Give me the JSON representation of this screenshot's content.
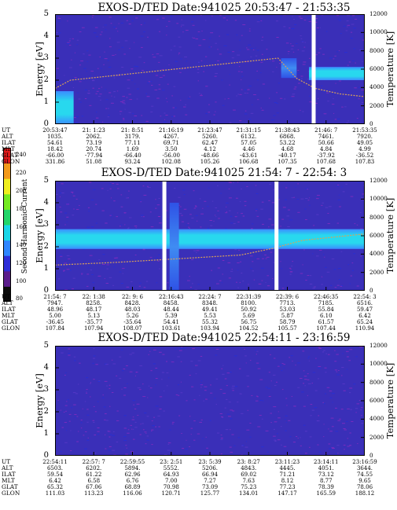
{
  "colorbar": {
    "label": "Second Harmonic Current",
    "ticks": [
      "80",
      "100",
      "120",
      "140",
      "160",
      "180",
      "200",
      "220",
      "240"
    ],
    "colors": [
      "#0b0b0b",
      "#5b1d8c",
      "#2e2ed8",
      "#2f86ff",
      "#19d6e8",
      "#22d66a",
      "#74ea20",
      "#f0ee1e",
      "#f39a1a",
      "#e11b1b"
    ]
  },
  "panels": [
    {
      "title": "EXOS-D/TED   Date:941025   20:53:47 - 21:53:35",
      "ylabel": "Energy [eV]",
      "rlabel": "Temperature [K]",
      "eph_labels": [
        "UT",
        "ALT",
        "ILAT",
        "MLT",
        "GLAT",
        "GLON"
      ],
      "eph": [
        [
          "20:53:47",
          "1035.",
          "54.61",
          "18.42",
          "-66.00",
          "331.86"
        ],
        [
          "21: 1:23",
          "2062.",
          "73.19",
          "20.74",
          "-77.94",
          "51.08"
        ],
        [
          "21: 8:51",
          "3179.",
          "77.11",
          "1.69",
          "-66.40",
          "93.24"
        ],
        [
          "21:16:19",
          "4267.",
          "69.71",
          "3.50",
          "-56.00",
          "102.08"
        ],
        [
          "21:23:47",
          "5260.",
          "62.47",
          "4.12",
          "-48.66",
          "105.26"
        ],
        [
          "21:31:15",
          "6132.",
          "57.05",
          "4.46",
          "-43.61",
          "106.68"
        ],
        [
          "21:38:43",
          "6868.",
          "53.22",
          "4.68",
          "-40.17",
          "107.35"
        ],
        [
          "21:46: 7",
          "7461.",
          "50.66",
          "4.84",
          "-37.92",
          "107.68"
        ],
        [
          "21:53:35",
          "7920.",
          "49.05",
          "4.99",
          "-36.52",
          "107.83"
        ]
      ]
    },
    {
      "title": "EXOS-D/TED   Date:941025   21:54: 7 - 22:54: 3",
      "ylabel": "Energy [eV]",
      "rlabel": "Temperature [K]",
      "eph_labels": [
        "UT",
        "ALT",
        "ILAT",
        "MLT",
        "GLAT",
        "GLON"
      ],
      "eph": [
        [
          "21:54: 7",
          "7947.",
          "48.96",
          "5.00",
          "-36.45",
          "107.84"
        ],
        [
          "22: 1:38",
          "8258.",
          "48.17",
          "5.13",
          "-35.77",
          "107.94"
        ],
        [
          "22: 9: 6",
          "8428.",
          "48.03",
          "5.26",
          "-35.64",
          "108.07"
        ],
        [
          "22:16:43",
          "8458.",
          "48.44",
          "5.39",
          "54.41",
          "103.61"
        ],
        [
          "22:24: 7",
          "8348.",
          "49.41",
          "5.53",
          "55.32",
          "103.94"
        ],
        [
          "22:31:39",
          "8100.",
          "50.92",
          "5.69",
          "56.75",
          "104.52"
        ],
        [
          "22:39: 6",
          "7713.",
          "53.03",
          "5.87",
          "58.79",
          "105.57"
        ],
        [
          "22:46:35",
          "7185.",
          "55.84",
          "6.10",
          "61.57",
          "107.44"
        ],
        [
          "22:54: 3",
          "6516.",
          "59.47",
          "6.42",
          "65.24",
          "110.94"
        ]
      ]
    },
    {
      "title": "EXOS-D/TED   Date:941025   22:54:11 - 23:16:59",
      "ylabel": "Energy [eV]",
      "rlabel": "Temperature [K]",
      "eph_labels": [
        "UT",
        "ALT",
        "ILAT",
        "MLT",
        "GLAT",
        "GLON"
      ],
      "eph": [
        [
          "22:54:11",
          "6503.",
          "59.54",
          "6.42",
          "65.32",
          "111.03"
        ],
        [
          "22:57: 7",
          "6202.",
          "61.22",
          "6.58",
          "67.06",
          "113.23"
        ],
        [
          "22:59:55",
          "5894.",
          "62.96",
          "6.76",
          "68.89",
          "116.06"
        ],
        [
          "23: 2:51",
          "5552.",
          "64.93",
          "7.00",
          "70.98",
          "120.71"
        ],
        [
          "23: 5:39",
          "5206.",
          "66.94",
          "7.27",
          "73.09",
          "125.77"
        ],
        [
          "23: 8:27",
          "4843.",
          "69.02",
          "7.63",
          "75.23",
          "134.01"
        ],
        [
          "23:11:23",
          "4445.",
          "71.21",
          "8.12",
          "77.23",
          "147.17"
        ],
        [
          "23:14:11",
          "4051.",
          "73.12",
          "8.77",
          "78.39",
          "165.59"
        ],
        [
          "23:16:59",
          "3644.",
          "74.55",
          "9.65",
          "78.06",
          "188.12"
        ]
      ]
    }
  ],
  "chart_data": [
    {
      "type": "heatmap",
      "title": "EXOS-D/TED   Date:941025   20:53:47 - 21:53:35",
      "ylabel": "Energy [eV]",
      "y2label": "Temperature [K]",
      "ylim": [
        0,
        5
      ],
      "y2lim": [
        0,
        12000
      ],
      "yticks": [
        0,
        1,
        2,
        3,
        4,
        5
      ],
      "y2ticks": [
        0,
        2000,
        4000,
        6000,
        8000,
        10000,
        12000
      ],
      "x_ticks": [
        "20:53:47",
        "21: 1:23",
        "21: 8:51",
        "21:16:19",
        "21:23:47",
        "21:31:15",
        "21:38:43",
        "21:46: 7",
        "21:53:35"
      ],
      "bands": [
        {
          "x_start": 0.0,
          "x_end": 0.06,
          "e_low": 0.0,
          "e_high": 1.5,
          "level": "high"
        },
        {
          "x_start": 0.73,
          "x_end": 0.78,
          "e_low": 2.1,
          "e_high": 3.0,
          "level": "medium"
        },
        {
          "x_start": 0.82,
          "x_end": 1.0,
          "e_low": 2.0,
          "e_high": 2.6,
          "level": "high"
        }
      ],
      "gaps": [
        0.835
      ],
      "temperature_series": {
        "x": [
          0.0,
          0.05,
          0.72,
          0.78,
          0.84,
          0.92,
          1.0
        ],
        "y": [
          3900,
          4800,
          7200,
          5000,
          3900,
          3300,
          3000
        ]
      }
    },
    {
      "type": "heatmap",
      "title": "EXOS-D/TED   Date:941025   21:54: 7 - 22:54: 3",
      "ylabel": "Energy [eV]",
      "y2label": "Temperature [K]",
      "ylim": [
        0,
        5
      ],
      "y2lim": [
        0,
        12000
      ],
      "yticks": [
        0,
        1,
        2,
        3,
        4,
        5
      ],
      "y2ticks": [
        0,
        2000,
        4000,
        6000,
        8000,
        10000,
        12000
      ],
      "x_ticks": [
        "21:54: 7",
        "22: 1:38",
        "22: 9: 6",
        "22:16:43",
        "22:24: 7",
        "22:31:39",
        "22:39: 6",
        "22:46:35",
        "22:54: 3"
      ],
      "bands": [
        {
          "x_start": 0.0,
          "x_end": 1.0,
          "e_low": 1.9,
          "e_high": 2.8,
          "level": "high"
        },
        {
          "x_start": 0.37,
          "x_end": 0.4,
          "e_low": 0.0,
          "e_high": 4.0,
          "level": "medium"
        }
      ],
      "gaps": [
        0.353,
        0.715
      ],
      "temperature_series": {
        "x": [
          0.0,
          0.2,
          0.4,
          0.6,
          0.7,
          0.8,
          1.0
        ],
        "y": [
          2800,
          3100,
          3500,
          3900,
          4600,
          5500,
          6200
        ]
      }
    },
    {
      "type": "heatmap",
      "title": "EXOS-D/TED   Date:941025   22:54:11 - 23:16:59",
      "ylabel": "Energy [eV]",
      "y2label": "Temperature [K]",
      "ylim": [
        0,
        5
      ],
      "y2lim": [
        0,
        12000
      ],
      "yticks": [
        0,
        1,
        2,
        3,
        4,
        5
      ],
      "y2ticks": [
        0,
        2000,
        4000,
        6000,
        8000,
        10000,
        12000
      ],
      "x_ticks": [
        "22:54:11",
        "22:57: 7",
        "22:59:55",
        "23: 2:51",
        "23: 5:39",
        "23: 8:27",
        "23:11:23",
        "23:14:11",
        "23:16:59"
      ],
      "bands": [],
      "gaps": []
    }
  ]
}
